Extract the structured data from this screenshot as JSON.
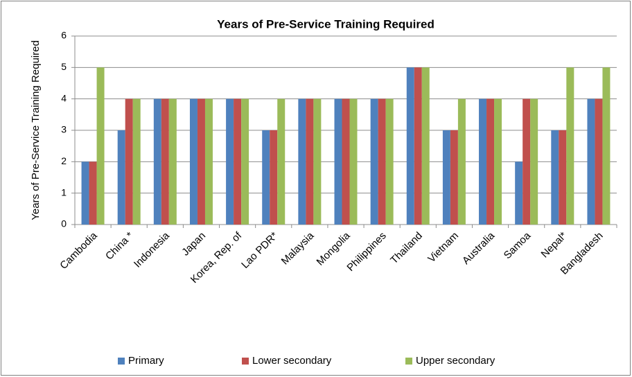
{
  "chart_data": {
    "type": "bar",
    "title": "Years of Pre-Service Training Required",
    "y_label": "Years of Pre-Service Training Required",
    "categories": [
      "Cambodia",
      "China *",
      "Indonesia",
      "Japan",
      "Korea, Rep. of",
      "Lao PDR*",
      "Malaysia",
      "Mongolia",
      "Philippines",
      "Thailand",
      "Vietnam",
      "Australia",
      "Samoa",
      "Nepal*",
      "Bangladesh"
    ],
    "series": [
      {
        "name": "Primary",
        "color": "#4f81bd",
        "values": [
          2,
          3,
          4,
          4,
          4,
          3,
          4,
          4,
          4,
          5,
          3,
          4,
          2,
          3,
          4
        ]
      },
      {
        "name": "Lower secondary",
        "color": "#c0504d",
        "values": [
          2,
          4,
          4,
          4,
          4,
          3,
          4,
          4,
          4,
          5,
          3,
          4,
          4,
          3,
          4
        ]
      },
      {
        "name": "Upper secondary",
        "color": "#9bbb59",
        "values": [
          5,
          4,
          4,
          4,
          4,
          4,
          4,
          4,
          4,
          5,
          4,
          4,
          4,
          5,
          5
        ]
      }
    ],
    "ylim": [
      0,
      6
    ],
    "yticks": [
      0,
      1,
      2,
      3,
      4,
      5,
      6
    ],
    "grid": true,
    "legend": "bottom"
  }
}
